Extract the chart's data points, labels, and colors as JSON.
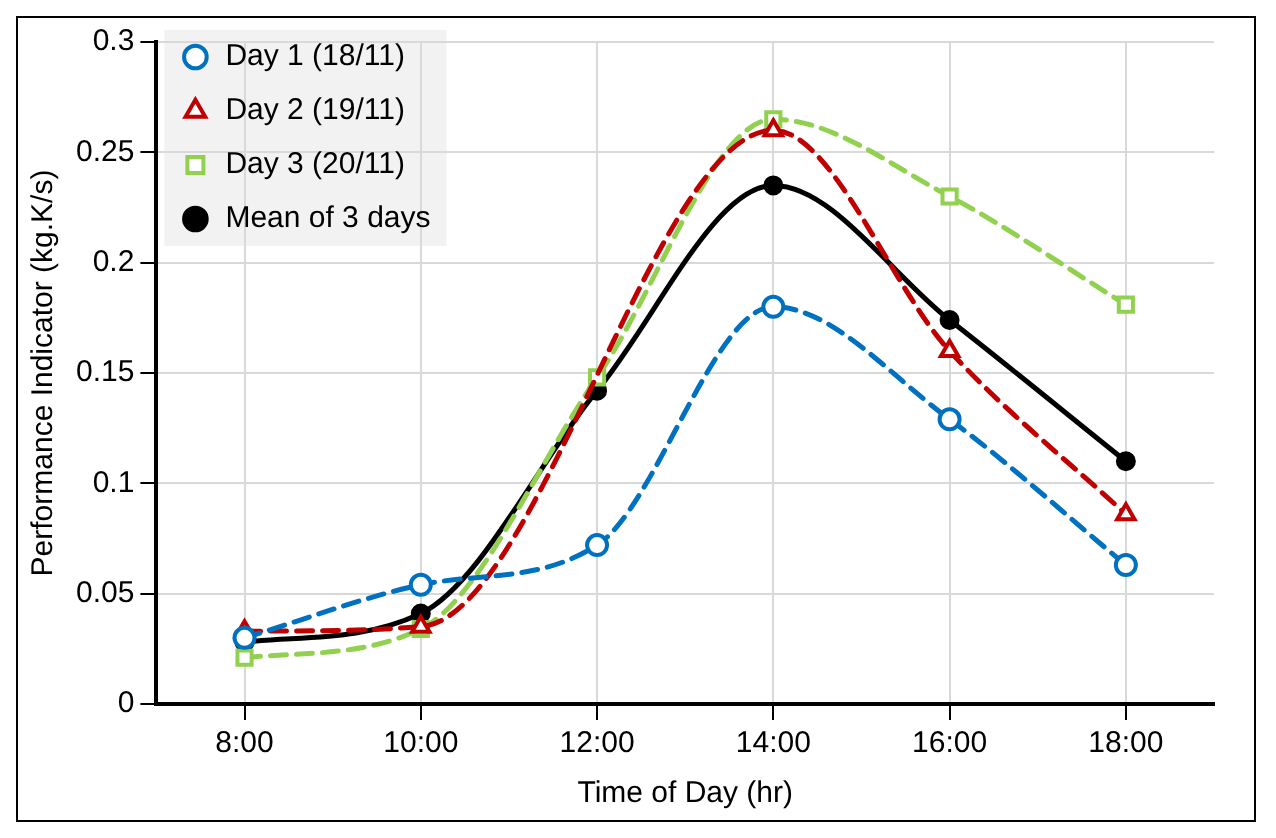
{
  "chart_data": {
    "type": "line",
    "xlabel": "Time of Day (hr)",
    "ylabel": "Performance Indicator (kg.K/s)",
    "categories": [
      "8:00",
      "10:00",
      "12:00",
      "14:00",
      "16:00",
      "18:00"
    ],
    "series": [
      {
        "name": "Day 1 (18/11)",
        "color": "#0070c0",
        "marker": "circle",
        "line_style": "dashed",
        "values": [
          0.03,
          0.054,
          0.072,
          0.18,
          0.129,
          0.063
        ]
      },
      {
        "name": "Day 2 (19/11)",
        "color": "#c00000",
        "marker": "triangle",
        "line_style": "dashed",
        "values": [
          0.033,
          0.035,
          null,
          0.26,
          0.16,
          0.086
        ]
      },
      {
        "name": "Day 3 (20/11)",
        "color": "#92d050",
        "marker": "square",
        "line_style": "dashed",
        "values": [
          0.021,
          0.034,
          0.148,
          0.265,
          0.23,
          0.181
        ]
      },
      {
        "name": "Mean of 3 days",
        "color": "#000000",
        "marker": "circle",
        "line_style": "solid",
        "values": [
          0.028,
          0.041,
          0.142,
          0.235,
          0.174,
          0.11
        ]
      }
    ],
    "ylim": [
      0,
      0.3
    ],
    "yticks": [
      0,
      0.05,
      0.1,
      0.15,
      0.2,
      0.25,
      0.3
    ],
    "grid": true,
    "legend": "top left"
  }
}
